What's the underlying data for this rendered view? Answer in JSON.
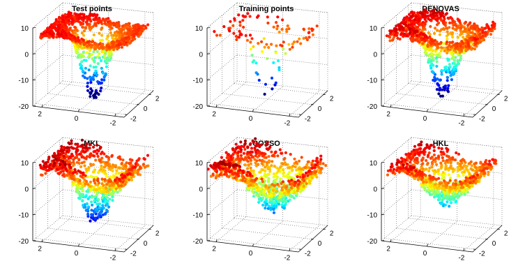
{
  "chart_data": [
    {
      "type": "scatter",
      "title": "Test points",
      "ztick_labels": [
        "10",
        "0",
        "-10",
        "-20"
      ],
      "xtick_labels": [
        "2",
        "0",
        "-2"
      ],
      "ytick_labels": [
        "-2",
        "0",
        "2"
      ],
      "zlim": [
        -20,
        10
      ],
      "colormap": "jet",
      "grid": true,
      "surface": {
        "bowl_depth": 26,
        "bowl_width": 0.85,
        "ridge": 3,
        "noise": 1.0,
        "n_points": 1000,
        "spread": 1.0
      }
    },
    {
      "type": "scatter",
      "title": "Training points",
      "ztick_labels": [
        "10",
        "0",
        "-10",
        "-20"
      ],
      "xtick_labels": [
        "2",
        "0",
        "-2"
      ],
      "ytick_labels": [
        "-2",
        "0",
        "2"
      ],
      "zlim": [
        -20,
        10
      ],
      "colormap": "jet",
      "grid": true,
      "surface": {
        "bowl_depth": 26,
        "bowl_width": 0.85,
        "ridge": 3,
        "noise": 1.5,
        "n_points": 110,
        "spread": 1.0
      }
    },
    {
      "type": "scatter",
      "title": "DENOVAS",
      "ztick_labels": [
        "10",
        "0",
        "-10",
        "-20"
      ],
      "xtick_labels": [
        "2",
        "0",
        "-2"
      ],
      "ytick_labels": [
        "-2",
        "0",
        "2"
      ],
      "zlim": [
        -20,
        10
      ],
      "colormap": "jet",
      "grid": true,
      "surface": {
        "bowl_depth": 24,
        "bowl_width": 0.9,
        "ridge": 4,
        "noise": 1.8,
        "n_points": 950,
        "spread": 1.0
      }
    },
    {
      "type": "scatter",
      "title": "MKL",
      "ztick_labels": [
        "10",
        "0",
        "-10",
        "-20"
      ],
      "xtick_labels": [
        "2",
        "0",
        "-2"
      ],
      "ytick_labels": [
        "-2",
        "0",
        "2"
      ],
      "zlim": [
        -20,
        10
      ],
      "colormap": "jet",
      "grid": true,
      "surface": {
        "bowl_depth": 20,
        "bowl_width": 1.1,
        "ridge": 6,
        "noise": 2.5,
        "n_points": 900,
        "spread": 1.0
      }
    },
    {
      "type": "scatter",
      "title": "COSSO",
      "ztick_labels": [
        "10",
        "0",
        "-10",
        "-20"
      ],
      "xtick_labels": [
        "2",
        "0",
        "-2"
      ],
      "ytick_labels": [
        "-2",
        "0",
        "2"
      ],
      "zlim": [
        -20,
        10
      ],
      "colormap": "jet",
      "grid": true,
      "surface": {
        "bowl_depth": 14,
        "bowl_width": 1.6,
        "ridge": 7,
        "noise": 3.0,
        "n_points": 1000,
        "spread": 1.1
      }
    },
    {
      "type": "scatter",
      "title": "HKL",
      "ztick_labels": [
        "10",
        "0",
        "-10",
        "-20"
      ],
      "xtick_labels": [
        "2",
        "0",
        "-2"
      ],
      "ytick_labels": [
        "-2",
        "0",
        "2"
      ],
      "zlim": [
        -20,
        10
      ],
      "colormap": "jet",
      "grid": true,
      "surface": {
        "bowl_depth": 13,
        "bowl_width": 1.4,
        "ridge": 5,
        "noise": 2.2,
        "n_points": 850,
        "spread": 1.0
      }
    }
  ]
}
